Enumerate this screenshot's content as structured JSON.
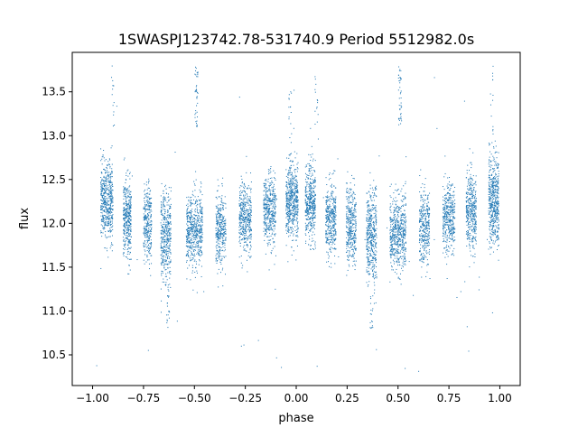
{
  "chart_data": {
    "type": "scatter",
    "title": "1SWASPJ123742.78-531740.9 Period 5512982.0s",
    "xlabel": "phase",
    "ylabel": "flux",
    "xlim": [
      -1.1,
      1.1
    ],
    "ylim": [
      10.15,
      13.95
    ],
    "x_ticks": [
      -1.0,
      -0.75,
      -0.5,
      -0.25,
      0.0,
      0.25,
      0.5,
      0.75,
      1.0
    ],
    "x_tick_labels": [
      "−1.00",
      "−0.75",
      "−0.50",
      "−0.25",
      "0.00",
      "0.25",
      "0.50",
      "0.75",
      "1.00"
    ],
    "y_ticks": [
      10.5,
      11.0,
      11.5,
      12.0,
      12.5,
      13.0,
      13.5
    ],
    "y_tick_labels": [
      "10.5",
      "11.0",
      "11.5",
      "12.0",
      "12.5",
      "13.0",
      "13.5"
    ],
    "grid": false,
    "point_color": "#1f77b4",
    "series": [
      {
        "clusters": [
          {
            "x_center": -0.93,
            "x_width": 0.06,
            "y_mean": 12.25,
            "y_spread": 0.22,
            "count": 520
          },
          {
            "x_center": -0.83,
            "x_width": 0.04,
            "y_mean": 12.05,
            "y_spread": 0.22,
            "count": 380
          },
          {
            "x_center": -0.73,
            "x_width": 0.04,
            "y_mean": 11.98,
            "y_spread": 0.22,
            "count": 300
          },
          {
            "x_center": -0.64,
            "x_width": 0.05,
            "y_mean": 11.85,
            "y_spread": 0.26,
            "count": 420
          },
          {
            "x_center": -0.5,
            "x_width": 0.08,
            "y_mean": 11.9,
            "y_spread": 0.22,
            "count": 560
          },
          {
            "x_center": -0.37,
            "x_width": 0.05,
            "y_mean": 11.95,
            "y_spread": 0.2,
            "count": 340
          },
          {
            "x_center": -0.25,
            "x_width": 0.06,
            "y_mean": 12.05,
            "y_spread": 0.2,
            "count": 420
          },
          {
            "x_center": -0.13,
            "x_width": 0.06,
            "y_mean": 12.15,
            "y_spread": 0.2,
            "count": 420
          },
          {
            "x_center": -0.02,
            "x_width": 0.06,
            "y_mean": 12.25,
            "y_spread": 0.22,
            "count": 540
          },
          {
            "x_center": 0.07,
            "x_width": 0.05,
            "y_mean": 12.22,
            "y_spread": 0.22,
            "count": 440
          },
          {
            "x_center": 0.17,
            "x_width": 0.05,
            "y_mean": 12.05,
            "y_spread": 0.2,
            "count": 380
          },
          {
            "x_center": 0.27,
            "x_width": 0.05,
            "y_mean": 11.97,
            "y_spread": 0.22,
            "count": 360
          },
          {
            "x_center": 0.37,
            "x_width": 0.05,
            "y_mean": 11.85,
            "y_spread": 0.26,
            "count": 440
          },
          {
            "x_center": 0.5,
            "x_width": 0.08,
            "y_mean": 11.9,
            "y_spread": 0.22,
            "count": 560
          },
          {
            "x_center": 0.63,
            "x_width": 0.05,
            "y_mean": 11.95,
            "y_spread": 0.2,
            "count": 340
          },
          {
            "x_center": 0.75,
            "x_width": 0.06,
            "y_mean": 12.05,
            "y_spread": 0.2,
            "count": 400
          },
          {
            "x_center": 0.86,
            "x_width": 0.05,
            "y_mean": 12.15,
            "y_spread": 0.22,
            "count": 400
          },
          {
            "x_center": 0.97,
            "x_width": 0.05,
            "y_mean": 12.25,
            "y_spread": 0.24,
            "count": 520
          }
        ],
        "outlier_columns": [
          {
            "x": -0.49,
            "y_min": 13.1,
            "y_max": 13.8,
            "count": 40
          },
          {
            "x": 0.51,
            "y_min": 13.1,
            "y_max": 13.8,
            "count": 40
          },
          {
            "x": -0.9,
            "y_min": 13.1,
            "y_max": 13.8,
            "count": 14
          },
          {
            "x": 0.1,
            "y_min": 13.1,
            "y_max": 13.8,
            "count": 14
          },
          {
            "x": 0.96,
            "y_min": 13.0,
            "y_max": 13.8,
            "count": 14
          },
          {
            "x": -0.63,
            "y_min": 10.8,
            "y_max": 11.2,
            "count": 16
          },
          {
            "x": 0.37,
            "y_min": 10.8,
            "y_max": 11.2,
            "count": 16
          },
          {
            "x": -0.03,
            "y_min": 12.6,
            "y_max": 13.5,
            "count": 18
          }
        ],
        "scattered_outliers": {
          "x_min": -0.98,
          "x_max": 0.98,
          "y_min": 10.3,
          "y_max": 13.7,
          "count": 70
        }
      }
    ]
  }
}
